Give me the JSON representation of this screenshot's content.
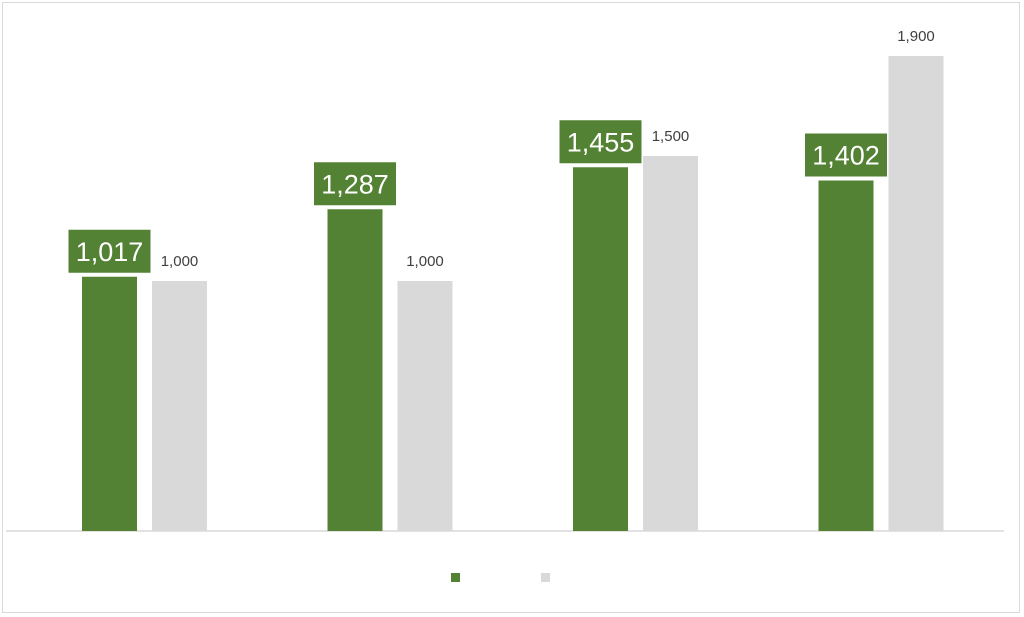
{
  "chart_data": {
    "type": "bar",
    "categories": [
      "",
      "",
      "",
      ""
    ],
    "series": [
      {
        "values": [
          1017,
          1287,
          1455,
          1402
        ],
        "color": "#548235",
        "label_style": "boxed"
      },
      {
        "values": [
          1000,
          1000,
          1500,
          1900
        ],
        "color": "#d9d9d9",
        "label_style": "plain"
      }
    ],
    "data_labels": {
      "actual": [
        "1,017",
        "1,287",
        "1,455",
        "1,402"
      ],
      "target": [
        "1,000",
        "1,000",
        "1,500",
        "1,900"
      ]
    },
    "title": "",
    "xlabel": "",
    "ylabel": "",
    "ylim": [
      0,
      2000
    ],
    "grid": false,
    "legend": {
      "position": "bottom",
      "entries": [
        {
          "label": "",
          "color": "#548235"
        },
        {
          "label": "",
          "color": "#d9d9d9"
        }
      ]
    },
    "axis_line_color": "#d9d9d9",
    "label_text_color": "#404040",
    "boxed_label_text_color": "#ffffff"
  }
}
